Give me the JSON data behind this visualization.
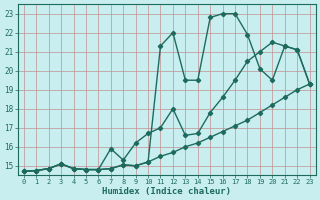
{
  "xlabel": "Humidex (Indice chaleur)",
  "bg_color": "#c8eef0",
  "grid_color": "#c09090",
  "line_color": "#1e6b5e",
  "xlim": [
    -0.5,
    23.5
  ],
  "ylim": [
    14.5,
    23.5
  ],
  "yticks": [
    15,
    16,
    17,
    18,
    19,
    20,
    21,
    22,
    23
  ],
  "xticks": [
    0,
    1,
    2,
    3,
    4,
    5,
    6,
    7,
    8,
    9,
    10,
    11,
    12,
    13,
    14,
    15,
    16,
    17,
    18,
    19,
    20,
    21,
    22,
    23
  ],
  "curve1_x": [
    0,
    1,
    2,
    3,
    4,
    5,
    6,
    7,
    8,
    9,
    10,
    11,
    12,
    13,
    14,
    15,
    16,
    17,
    18,
    19,
    20,
    21,
    22,
    23
  ],
  "curve1_y": [
    14.7,
    14.75,
    14.85,
    15.1,
    14.85,
    14.8,
    14.8,
    14.85,
    15.05,
    15.0,
    15.2,
    21.3,
    22.0,
    19.5,
    19.5,
    22.8,
    23.0,
    23.0,
    21.9,
    20.1,
    19.5,
    21.3,
    21.1,
    19.3
  ],
  "curve2_x": [
    0,
    1,
    2,
    3,
    4,
    5,
    6,
    7,
    8,
    9,
    10,
    11,
    12,
    13,
    14,
    15,
    16,
    17,
    18,
    19,
    20,
    21,
    22,
    23
  ],
  "curve2_y": [
    14.7,
    14.75,
    14.85,
    15.1,
    14.85,
    14.8,
    14.8,
    15.9,
    15.3,
    16.2,
    16.7,
    17.0,
    18.0,
    16.6,
    16.7,
    17.8,
    18.6,
    19.5,
    20.5,
    21.0,
    21.5,
    21.3,
    21.1,
    19.3
  ],
  "curve3_x": [
    0,
    1,
    2,
    3,
    4,
    5,
    6,
    7,
    8,
    9,
    10,
    11,
    12,
    13,
    14,
    15,
    16,
    17,
    18,
    19,
    20,
    21,
    22,
    23
  ],
  "curve3_y": [
    14.7,
    14.75,
    14.85,
    15.1,
    14.85,
    14.8,
    14.8,
    14.85,
    15.05,
    15.0,
    15.2,
    15.5,
    15.7,
    16.0,
    16.2,
    16.5,
    16.8,
    17.1,
    17.4,
    17.8,
    18.2,
    18.6,
    19.0,
    19.3
  ],
  "marker": "D",
  "marker_size": 2.2,
  "linewidth": 1.0
}
